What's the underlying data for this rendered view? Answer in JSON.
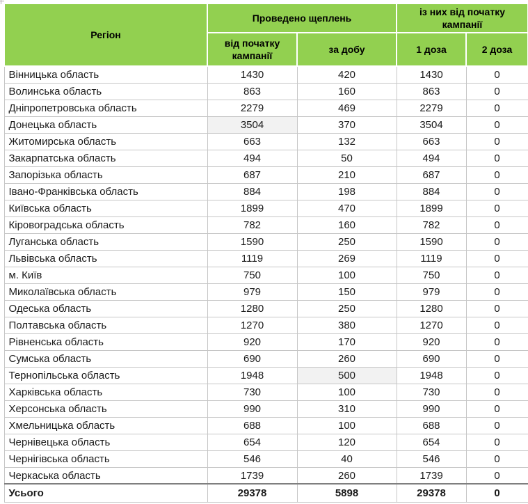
{
  "header": {
    "region_label": "Регіон",
    "group_vaccinations": "Проведено щеплень",
    "group_since_start": "із них від початку кампанії",
    "col_since_start": "від початку кампанії",
    "col_per_day": "за добу",
    "col_dose1": "1 доза",
    "col_dose2": "2 доза"
  },
  "rows": [
    {
      "region": "Вінницька область",
      "values": [
        1430,
        420,
        1430,
        0
      ]
    },
    {
      "region": "Волинська область",
      "values": [
        863,
        160,
        863,
        0
      ]
    },
    {
      "region": "Дніпропетровська область",
      "values": [
        2279,
        469,
        2279,
        0
      ]
    },
    {
      "region": "Донецька область",
      "values": [
        3504,
        370,
        3504,
        0
      ]
    },
    {
      "region": "Житомирська область",
      "values": [
        663,
        132,
        663,
        0
      ]
    },
    {
      "region": "Закарпатська область",
      "values": [
        494,
        50,
        494,
        0
      ]
    },
    {
      "region": "Запорізька область",
      "values": [
        687,
        210,
        687,
        0
      ]
    },
    {
      "region": "Івано-Франківська область",
      "values": [
        884,
        198,
        884,
        0
      ]
    },
    {
      "region": "Київська область",
      "values": [
        1899,
        470,
        1899,
        0
      ]
    },
    {
      "region": "Кіровоградська область",
      "values": [
        782,
        160,
        782,
        0
      ]
    },
    {
      "region": "Луганська область",
      "values": [
        1590,
        250,
        1590,
        0
      ]
    },
    {
      "region": "Львівська область",
      "values": [
        1119,
        269,
        1119,
        0
      ]
    },
    {
      "region": "м. Київ",
      "values": [
        750,
        100,
        750,
        0
      ]
    },
    {
      "region": "Миколаївська область",
      "values": [
        979,
        150,
        979,
        0
      ]
    },
    {
      "region": "Одеська область",
      "values": [
        1280,
        250,
        1280,
        0
      ]
    },
    {
      "region": "Полтавська область",
      "values": [
        1270,
        380,
        1270,
        0
      ]
    },
    {
      "region": "Рівненська область",
      "values": [
        920,
        170,
        920,
        0
      ]
    },
    {
      "region": "Сумська область",
      "values": [
        690,
        260,
        690,
        0
      ]
    },
    {
      "region": "Тернопільська область",
      "values": [
        1948,
        500,
        1948,
        0
      ]
    },
    {
      "region": "Харківська область",
      "values": [
        730,
        100,
        730,
        0
      ]
    },
    {
      "region": "Херсонська область",
      "values": [
        990,
        310,
        990,
        0
      ]
    },
    {
      "region": "Хмельницька область",
      "values": [
        688,
        100,
        688,
        0
      ]
    },
    {
      "region": "Чернівецька область",
      "values": [
        654,
        120,
        654,
        0
      ]
    },
    {
      "region": "Чернігівська область",
      "values": [
        546,
        40,
        546,
        0
      ]
    },
    {
      "region": "Черкаська область",
      "values": [
        1739,
        260,
        1739,
        0
      ]
    }
  ],
  "total_row": {
    "label": "Усього",
    "values": [
      29378,
      5898,
      29378,
      0
    ]
  },
  "highlight_cells": [
    {
      "row_index": 3,
      "col_index": 0
    },
    {
      "row_index": 18,
      "col_index": 1
    }
  ],
  "colors": {
    "header_bg": "#92d050",
    "header_text": "#000000",
    "grid_border": "#c6c6c6",
    "total_top_border": "#7f7f7f",
    "highlight_bg": "#f2f2f2"
  }
}
